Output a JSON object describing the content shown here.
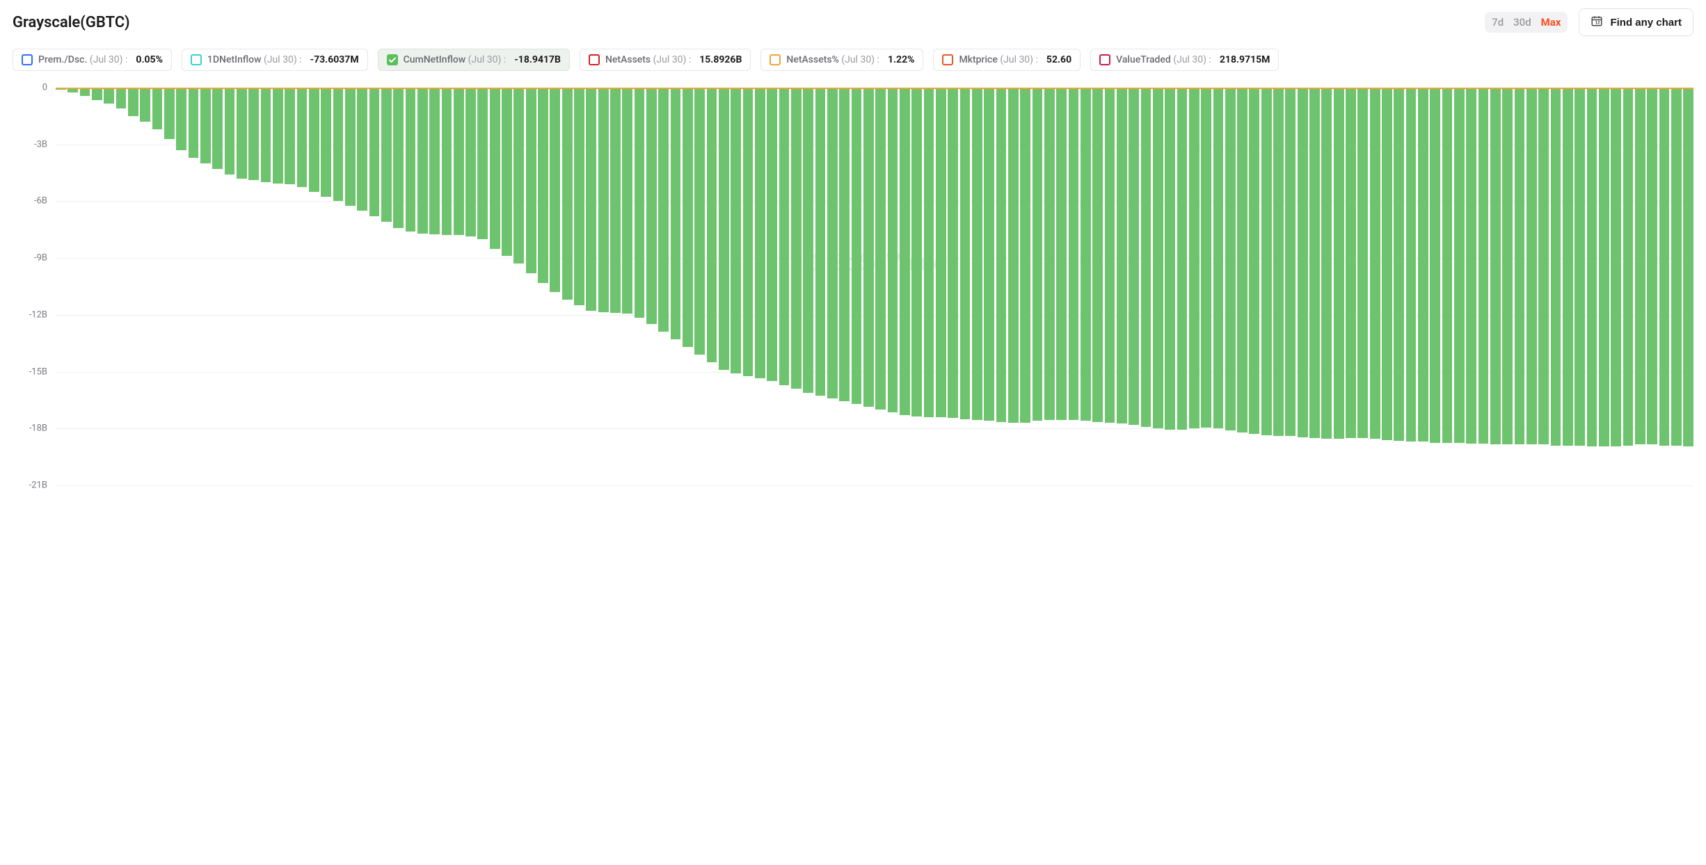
{
  "header": {
    "title": "Grayscale(GBTC)",
    "range": {
      "options": [
        "7d",
        "30d",
        "Max"
      ],
      "active_index": 2,
      "inactive_color": "#9a9a9f",
      "active_color": "#ff4d1c"
    },
    "find_chart_label": "Find any chart"
  },
  "legend": {
    "date_label": "(Jul 30)",
    "separator": ":",
    "items": [
      {
        "key": "prem",
        "name": "Prem./Dsc.",
        "value": "0.05%",
        "color": "#2f6bff",
        "checked": false
      },
      {
        "key": "inflow",
        "name": "1DNetInflow",
        "value": "-73.6037M",
        "color": "#34d2d6",
        "checked": false
      },
      {
        "key": "cum",
        "name": "CumNetInflow",
        "value": "-18.9417B",
        "color": "#5bbf5b",
        "checked": true
      },
      {
        "key": "assets",
        "name": "NetAssets",
        "value": "15.8926B",
        "color": "#d61f1f",
        "checked": false
      },
      {
        "key": "pct",
        "name": "NetAssets%",
        "value": "1.22%",
        "color": "#f2a33a",
        "checked": false
      },
      {
        "key": "price",
        "name": "Mktprice",
        "value": "52.60",
        "color": "#e25a2b",
        "checked": false
      },
      {
        "key": "traded",
        "name": "ValueTraded",
        "value": "218.9715M",
        "color": "#c21d4a",
        "checked": false
      }
    ]
  },
  "chart": {
    "type": "bar",
    "ylim": [
      -21,
      0
    ],
    "ytick_step": 3,
    "ytick_labels": [
      "0",
      "-3B",
      "-6B",
      "-9B",
      "-12B",
      "-15B",
      "-18B",
      "-21B"
    ],
    "ytick_values": [
      0,
      -3,
      -6,
      -9,
      -12,
      -15,
      -18,
      -21
    ],
    "bar_color": "#6ec46e",
    "baseline_color": "#f2a33a",
    "grid_color": "#f0f0f2",
    "background_color": "#ffffff",
    "axis_label_color": "#7a7a80",
    "axis_fontsize": 13,
    "watermark": "SoSoValue",
    "values": [
      -0.1,
      -0.25,
      -0.45,
      -0.65,
      -0.85,
      -1.1,
      -1.5,
      -1.8,
      -2.2,
      -2.7,
      -3.3,
      -3.7,
      -4.0,
      -4.3,
      -4.6,
      -4.8,
      -4.9,
      -5.0,
      -5.05,
      -5.1,
      -5.25,
      -5.5,
      -5.75,
      -6.0,
      -6.25,
      -6.5,
      -6.8,
      -7.1,
      -7.4,
      -7.6,
      -7.7,
      -7.75,
      -7.8,
      -7.8,
      -7.85,
      -8.0,
      -8.5,
      -8.9,
      -9.3,
      -9.8,
      -10.3,
      -10.8,
      -11.2,
      -11.5,
      -11.8,
      -11.85,
      -11.9,
      -11.95,
      -12.15,
      -12.5,
      -12.9,
      -13.3,
      -13.7,
      -14.1,
      -14.5,
      -14.9,
      -15.1,
      -15.25,
      -15.35,
      -15.5,
      -15.7,
      -15.9,
      -16.1,
      -16.25,
      -16.4,
      -16.55,
      -16.7,
      -16.85,
      -17.0,
      -17.15,
      -17.3,
      -17.35,
      -17.4,
      -17.4,
      -17.45,
      -17.5,
      -17.55,
      -17.6,
      -17.65,
      -17.7,
      -17.7,
      -17.6,
      -17.55,
      -17.55,
      -17.55,
      -17.6,
      -17.65,
      -17.7,
      -17.75,
      -17.8,
      -17.9,
      -18.0,
      -18.05,
      -18.05,
      -18.0,
      -17.95,
      -18.0,
      -18.1,
      -18.2,
      -18.3,
      -18.35,
      -18.4,
      -18.4,
      -18.45,
      -18.5,
      -18.55,
      -18.55,
      -18.5,
      -18.5,
      -18.55,
      -18.6,
      -18.65,
      -18.7,
      -18.7,
      -18.75,
      -18.75,
      -18.75,
      -18.8,
      -18.8,
      -18.85,
      -18.85,
      -18.85,
      -18.85,
      -18.85,
      -18.9,
      -18.9,
      -18.9,
      -18.95,
      -18.95,
      -18.95,
      -18.9,
      -18.85,
      -18.85,
      -18.9,
      -18.9,
      -18.94
    ]
  }
}
